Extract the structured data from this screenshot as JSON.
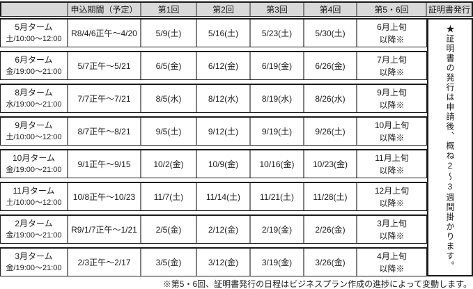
{
  "colors": {
    "header_bg": "#d9d9d9",
    "grid_line": "#808080",
    "border": "#1a1a1a"
  },
  "table": {
    "headers": [
      "",
      "申込期間（予定）",
      "第1回",
      "第2回",
      "第3回",
      "第4回",
      "第5・6回",
      "証明書発行"
    ],
    "rows": [
      {
        "term": "5月ターム",
        "schedule": "土/10:00〜12:00",
        "period": "R8/4/6正午〜4/20",
        "s1": "5/9(土)",
        "s2": "5/16(土)",
        "s3": "5/23(土)",
        "s4": "5/30(土)",
        "s56a": "6月上旬",
        "s56b": "以降※"
      },
      {
        "term": "6月ターム",
        "schedule": "金/19:00〜21:00",
        "period": "5/7正午〜5/21",
        "s1": "6/5(金)",
        "s2": "6/12(金)",
        "s3": "6/19(金)",
        "s4": "6/26(金)",
        "s56a": "7月上旬",
        "s56b": "以降※"
      },
      {
        "term": "8月ターム",
        "schedule": "水/19:00〜21:00",
        "period": "7/7正午〜7/21",
        "s1": "8/5(水)",
        "s2": "8/12(水)",
        "s3": "8/19(水)",
        "s4": "8/26(水)",
        "s56a": "9月上旬",
        "s56b": "以降※"
      },
      {
        "term": "9月ターム",
        "schedule": "土/10:00〜12:00",
        "period": "8/7正午〜8/21",
        "s1": "9/5(土)",
        "s2": "9/12(土)",
        "s3": "9/19(土)",
        "s4": "9/26(土)",
        "s56a": "10月上旬",
        "s56b": "以降※"
      },
      {
        "term": "10月ターム",
        "schedule": "金/19:00〜21:00",
        "period": "9/1正午〜9/15",
        "s1": "10/2(金)",
        "s2": "10/9(金)",
        "s3": "10/16(金)",
        "s4": "10/23(金)",
        "s56a": "11月上旬",
        "s56b": "以降※"
      },
      {
        "term": "11月ターム",
        "schedule": "土/10:00〜12:00",
        "period": "10/8正午〜10/23",
        "s1": "11/7(土)",
        "s2": "11/14(土)",
        "s3": "11/21(土)",
        "s4": "11/28(土)",
        "s56a": "12月上旬",
        "s56b": "以降※"
      },
      {
        "term": "2月ターム",
        "schedule": "金/19:00〜21:00",
        "period": "R9/1/7正午〜1/21",
        "s1": "2/5(金)",
        "s2": "2/12(金)",
        "s3": "2/19(金)",
        "s4": "2/26(金)",
        "s56a": "3月上旬",
        "s56b": "以降※"
      },
      {
        "term": "3月ターム",
        "schedule": "金/19:00〜21:00",
        "period": "2/3正午〜2/17",
        "s1": "3/5(金)",
        "s2": "3/12(金)",
        "s3": "3/19(金)",
        "s4": "3/26(金)",
        "s56a": "4月上旬",
        "s56b": "以降※"
      }
    ],
    "cert_note_vertical": "★証明書の発行は申請後、概ね2〜3週間掛かります。",
    "footnote": "※第5・6回、証明書発行の日程はビジネスプラン作成の進捗によって変動します。"
  }
}
